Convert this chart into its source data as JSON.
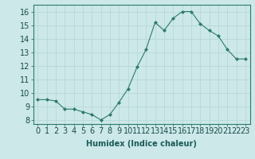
{
  "x": [
    0,
    1,
    2,
    3,
    4,
    5,
    6,
    7,
    8,
    9,
    10,
    11,
    12,
    13,
    14,
    15,
    16,
    17,
    18,
    19,
    20,
    21,
    22,
    23
  ],
  "y": [
    9.5,
    9.5,
    9.4,
    8.8,
    8.8,
    8.6,
    8.4,
    8.0,
    8.4,
    9.3,
    10.3,
    11.9,
    13.2,
    15.2,
    14.6,
    15.5,
    16.0,
    16.0,
    15.1,
    14.6,
    14.2,
    13.2,
    12.5,
    12.5
  ],
  "line_color": "#2d7a6e",
  "marker": "D",
  "marker_size": 2,
  "bg_color": "#cce8e8",
  "grid_color": "#b8d8d8",
  "xlabel": "Humidex (Indice chaleur)",
  "ylabel_ticks": [
    8,
    9,
    10,
    11,
    12,
    13,
    14,
    15,
    16
  ],
  "ylim": [
    7.7,
    16.5
  ],
  "xlim": [
    -0.5,
    23.5
  ],
  "xlabel_fontsize": 7,
  "tick_fontsize": 7
}
